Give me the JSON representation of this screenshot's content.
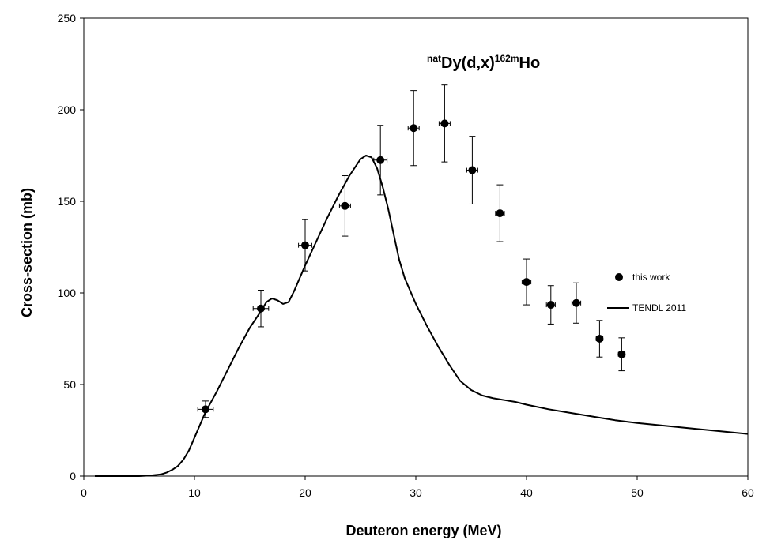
{
  "chart_data": {
    "type": "scatter",
    "title": {
      "pre_sup": "nat",
      "main": "Dy(d,x)",
      "post_sup": "162m",
      "tail": "Ho"
    },
    "xlabel": "Deuteron energy (MeV)",
    "ylabel": "Cross-section (mb)",
    "xlim": [
      0,
      60
    ],
    "ylim": [
      0,
      250
    ],
    "xticks": [
      "0",
      "10",
      "20",
      "30",
      "40",
      "50",
      "60"
    ],
    "yticks": [
      "0",
      "50",
      "100",
      "150",
      "200",
      "250"
    ],
    "grid": false,
    "legend_position": "right",
    "series": [
      {
        "name": "this work",
        "kind": "points",
        "x": [
          11.0,
          16.0,
          20.0,
          23.6,
          26.8,
          29.8,
          32.6,
          35.1,
          37.6,
          40.0,
          42.2,
          44.5,
          46.6,
          48.6
        ],
        "y": [
          36.5,
          91.5,
          126.0,
          147.5,
          172.5,
          190.0,
          192.5,
          167.0,
          143.5,
          106.0,
          93.5,
          94.5,
          75.0,
          66.5
        ],
        "yerr": [
          4.5,
          10.0,
          14.0,
          16.5,
          19.0,
          20.5,
          21.0,
          18.5,
          15.5,
          12.5,
          10.5,
          11.0,
          10.0,
          9.0
        ],
        "xerr": [
          0.7,
          0.7,
          0.6,
          0.5,
          0.6,
          0.5,
          0.5,
          0.5,
          0.4,
          0.4,
          0.4,
          0.4,
          0.3,
          0.3
        ]
      },
      {
        "name": "TENDL 2011",
        "kind": "line",
        "x": [
          1,
          5,
          6,
          7,
          7.5,
          8,
          8.5,
          9,
          9.5,
          10,
          10.5,
          11,
          12,
          13,
          14,
          15,
          16,
          16.5,
          17,
          17.5,
          18,
          18.5,
          19,
          20,
          21,
          22,
          23,
          24,
          25,
          25.5,
          26,
          26.5,
          27,
          27.5,
          28,
          28.5,
          29,
          30,
          31,
          32,
          33,
          34,
          35,
          36,
          37,
          38,
          39,
          40,
          42,
          44,
          46,
          48,
          50,
          55,
          60
        ],
        "y": [
          0,
          0,
          0.3,
          1,
          2,
          3.5,
          5.5,
          9,
          14,
          21,
          28,
          35,
          46,
          58,
          70,
          81,
          90,
          95,
          97,
          96,
          94,
          95,
          101,
          115,
          128,
          141,
          153,
          164,
          173,
          175,
          174,
          168,
          158,
          146,
          132,
          118,
          108,
          94,
          82,
          71,
          61,
          52,
          47,
          44,
          42.5,
          41.5,
          40.5,
          39,
          36.5,
          34.5,
          32.5,
          30.5,
          29,
          26,
          23
        ]
      }
    ]
  }
}
